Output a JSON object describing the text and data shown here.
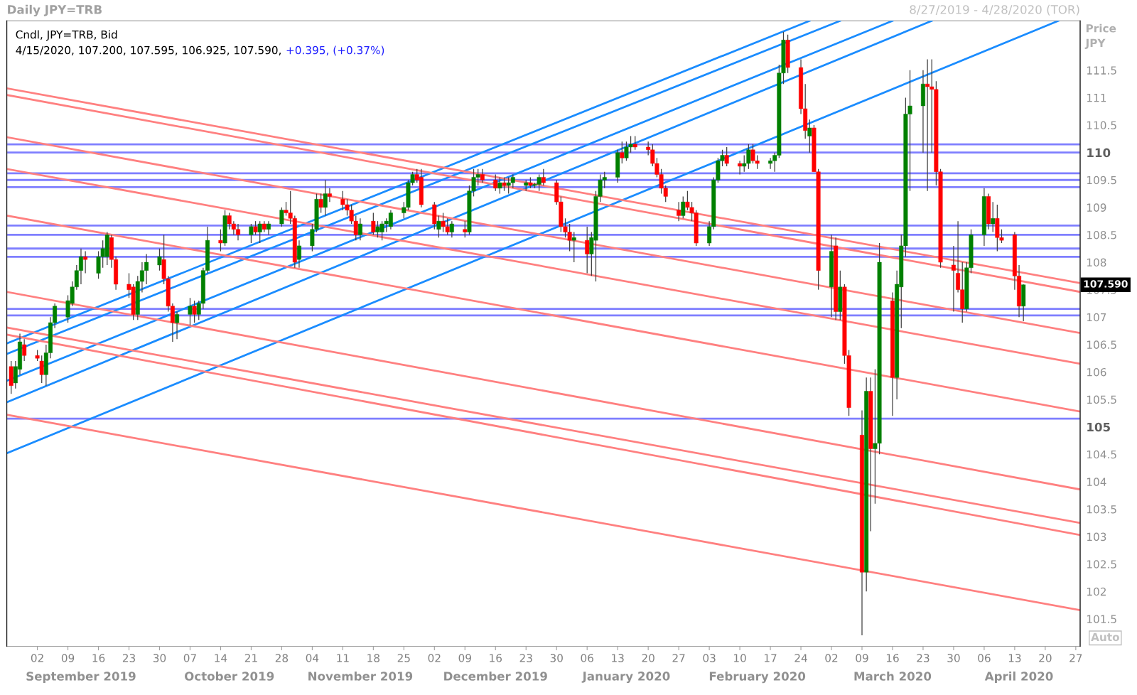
{
  "chart_data": {
    "type": "candlestick",
    "title": "Daily JPY=TRB",
    "subtitle": "8/27/2019 - 4/28/2020 (TOR)",
    "ylabel": "Price\nJPY",
    "annotations": [
      "Cndl, JPY=TRB, Bid",
      "4/15/2020, 107.200, 107.595, 106.925, 107.590,",
      "+0.395, (+0.37%)",
      "Auto",
      "107.590"
    ],
    "x": [
      "2019-08-27",
      "2019-08-28",
      "2019-08-29",
      "2019-08-30",
      "2019-09-02",
      "2019-09-03",
      "2019-09-04",
      "2019-09-05",
      "2019-09-06",
      "2019-09-09",
      "2019-09-10",
      "2019-09-11",
      "2019-09-12",
      "2019-09-13",
      "2019-09-16",
      "2019-09-17",
      "2019-09-18",
      "2019-09-19",
      "2019-09-20",
      "2019-09-23",
      "2019-09-24",
      "2019-09-25",
      "2019-09-26",
      "2019-09-27",
      "2019-09-30",
      "2019-10-01",
      "2019-10-02",
      "2019-10-03",
      "2019-10-04",
      "2019-10-07",
      "2019-10-08",
      "2019-10-09",
      "2019-10-10",
      "2019-10-11",
      "2019-10-14",
      "2019-10-15",
      "2019-10-16",
      "2019-10-17",
      "2019-10-18",
      "2019-10-21",
      "2019-10-22",
      "2019-10-23",
      "2019-10-24",
      "2019-10-25",
      "2019-10-28",
      "2019-10-29",
      "2019-10-30",
      "2019-10-31",
      "2019-11-01",
      "2019-11-04",
      "2019-11-05",
      "2019-11-06",
      "2019-11-07",
      "2019-11-08",
      "2019-11-11",
      "2019-11-12",
      "2019-11-13",
      "2019-11-14",
      "2019-11-15",
      "2019-11-18",
      "2019-11-19",
      "2019-11-20",
      "2019-11-21",
      "2019-11-22",
      "2019-11-25",
      "2019-11-26",
      "2019-11-27",
      "2019-11-28",
      "2019-11-29",
      "2019-12-02",
      "2019-12-03",
      "2019-12-04",
      "2019-12-05",
      "2019-12-06",
      "2019-12-09",
      "2019-12-10",
      "2019-12-11",
      "2019-12-12",
      "2019-12-13",
      "2019-12-16",
      "2019-12-17",
      "2019-12-18",
      "2019-12-19",
      "2019-12-20",
      "2019-12-23",
      "2019-12-24",
      "2019-12-25",
      "2019-12-26",
      "2019-12-27",
      "2019-12-30",
      "2019-12-31",
      "2020-01-01",
      "2020-01-02",
      "2020-01-03",
      "2020-01-06",
      "2020-01-07",
      "2020-01-08",
      "2020-01-09",
      "2020-01-10",
      "2020-01-13",
      "2020-01-14",
      "2020-01-15",
      "2020-01-16",
      "2020-01-17",
      "2020-01-20",
      "2020-01-21",
      "2020-01-22",
      "2020-01-23",
      "2020-01-24",
      "2020-01-27",
      "2020-01-28",
      "2020-01-29",
      "2020-01-30",
      "2020-01-31",
      "2020-02-03",
      "2020-02-04",
      "2020-02-05",
      "2020-02-06",
      "2020-02-07",
      "2020-02-10",
      "2020-02-11",
      "2020-02-12",
      "2020-02-13",
      "2020-02-14",
      "2020-02-17",
      "2020-02-18",
      "2020-02-19",
      "2020-02-20",
      "2020-02-21",
      "2020-02-24",
      "2020-02-25",
      "2020-02-26",
      "2020-02-27",
      "2020-02-28",
      "2020-03-02",
      "2020-03-03",
      "2020-03-04",
      "2020-03-05",
      "2020-03-06",
      "2020-03-09",
      "2020-03-10",
      "2020-03-11",
      "2020-03-12",
      "2020-03-13",
      "2020-03-16",
      "2020-03-17",
      "2020-03-18",
      "2020-03-19",
      "2020-03-20",
      "2020-03-23",
      "2020-03-24",
      "2020-03-25",
      "2020-03-26",
      "2020-03-27",
      "2020-03-30",
      "2020-03-31",
      "2020-04-01",
      "2020-04-02",
      "2020-04-03",
      "2020-04-06",
      "2020-04-07",
      "2020-04-08",
      "2020-04-09",
      "2020-04-10",
      "2020-04-13",
      "2020-04-14",
      "2020-04-15"
    ],
    "ohlc": [
      [
        106.1,
        106.2,
        105.6,
        105.75
      ],
      [
        105.8,
        106.2,
        105.7,
        106.1
      ],
      [
        106.05,
        106.7,
        105.95,
        106.55
      ],
      [
        106.5,
        106.6,
        106.2,
        106.3
      ],
      [
        106.3,
        106.4,
        106.2,
        106.25
      ],
      [
        106.2,
        106.3,
        105.8,
        105.95
      ],
      [
        105.95,
        106.5,
        105.75,
        106.35
      ],
      [
        106.35,
        107.0,
        106.25,
        106.9
      ],
      [
        106.9,
        107.25,
        106.8,
        107.2
      ],
      [
        107.0,
        107.4,
        106.9,
        107.3
      ],
      [
        107.25,
        107.65,
        107.2,
        107.55
      ],
      [
        107.55,
        107.95,
        107.5,
        107.85
      ],
      [
        107.85,
        108.25,
        107.6,
        108.1
      ],
      [
        108.1,
        108.2,
        107.8,
        108.05
      ],
      [
        107.8,
        108.2,
        107.7,
        108.1
      ],
      [
        108.1,
        108.4,
        107.9,
        108.25
      ],
      [
        108.1,
        108.55,
        107.95,
        108.5
      ],
      [
        108.45,
        108.5,
        107.9,
        108.05
      ],
      [
        108.05,
        108.1,
        107.5,
        107.6
      ],
      [
        107.6,
        107.8,
        107.35,
        107.5
      ],
      [
        107.55,
        107.6,
        106.95,
        107.05
      ],
      [
        107.05,
        107.75,
        106.95,
        107.65
      ],
      [
        107.65,
        108.0,
        107.45,
        107.85
      ],
      [
        107.85,
        108.15,
        107.6,
        108.0
      ],
      [
        107.95,
        108.25,
        107.85,
        108.1
      ],
      [
        108.05,
        108.5,
        107.6,
        107.7
      ],
      [
        107.7,
        107.75,
        107.1,
        107.2
      ],
      [
        107.2,
        107.25,
        106.55,
        106.9
      ],
      [
        106.9,
        107.1,
        106.6,
        107.05
      ],
      [
        107.05,
        107.35,
        106.85,
        107.2
      ],
      [
        107.2,
        107.3,
        106.9,
        107.05
      ],
      [
        107.05,
        107.3,
        106.95,
        107.25
      ],
      [
        107.25,
        107.9,
        107.15,
        107.85
      ],
      [
        107.85,
        108.65,
        107.8,
        108.4
      ],
      [
        108.4,
        108.6,
        108.2,
        108.35
      ],
      [
        108.35,
        108.95,
        108.3,
        108.85
      ],
      [
        108.85,
        108.9,
        108.6,
        108.7
      ],
      [
        108.7,
        108.75,
        108.5,
        108.6
      ],
      [
        108.6,
        108.7,
        108.4,
        108.5
      ],
      [
        108.5,
        108.7,
        108.35,
        108.65
      ],
      [
        108.65,
        108.75,
        108.5,
        108.55
      ],
      [
        108.55,
        108.75,
        108.35,
        108.7
      ],
      [
        108.7,
        108.75,
        108.55,
        108.6
      ],
      [
        108.6,
        108.75,
        108.5,
        108.7
      ],
      [
        108.7,
        109.0,
        108.65,
        108.95
      ],
      [
        108.95,
        109.1,
        108.85,
        108.9
      ],
      [
        108.9,
        109.3,
        108.7,
        108.8
      ],
      [
        108.8,
        108.85,
        107.9,
        108.0
      ],
      [
        108.05,
        108.4,
        107.9,
        108.3
      ],
      [
        108.3,
        108.7,
        108.2,
        108.6
      ],
      [
        108.6,
        109.25,
        108.55,
        109.15
      ],
      [
        109.15,
        109.25,
        108.9,
        109.0
      ],
      [
        109.0,
        109.5,
        108.85,
        109.25
      ],
      [
        109.25,
        109.35,
        109.1,
        109.2
      ],
      [
        109.15,
        109.3,
        108.95,
        109.05
      ],
      [
        109.05,
        109.15,
        108.85,
        108.95
      ],
      [
        108.95,
        109.05,
        108.7,
        108.75
      ],
      [
        108.75,
        108.85,
        108.4,
        108.5
      ],
      [
        108.5,
        108.8,
        108.4,
        108.7
      ],
      [
        108.75,
        108.9,
        108.5,
        108.55
      ],
      [
        108.55,
        108.75,
        108.45,
        108.65
      ],
      [
        108.55,
        108.75,
        108.4,
        108.7
      ],
      [
        108.7,
        108.8,
        108.55,
        108.75
      ],
      [
        108.65,
        108.95,
        108.6,
        108.9
      ],
      [
        108.9,
        109.1,
        108.8,
        109.0
      ],
      [
        109.0,
        109.5,
        108.95,
        109.45
      ],
      [
        109.45,
        109.65,
        109.4,
        109.6
      ],
      [
        109.6,
        109.7,
        109.45,
        109.5
      ],
      [
        109.55,
        109.7,
        109.0,
        109.05
      ],
      [
        109.05,
        109.1,
        108.6,
        108.7
      ],
      [
        108.6,
        108.85,
        108.45,
        108.75
      ],
      [
        108.75,
        108.9,
        108.55,
        108.65
      ],
      [
        108.65,
        108.8,
        108.5,
        108.55
      ],
      [
        108.55,
        108.75,
        108.45,
        108.7
      ],
      [
        108.6,
        108.75,
        108.45,
        108.55
      ],
      [
        108.55,
        109.4,
        108.5,
        109.3
      ],
      [
        109.3,
        109.7,
        109.2,
        109.55
      ],
      [
        109.55,
        109.7,
        109.4,
        109.6
      ],
      [
        109.6,
        109.7,
        109.45,
        109.5
      ],
      [
        109.5,
        109.6,
        109.3,
        109.35
      ],
      [
        109.35,
        109.55,
        109.25,
        109.45
      ],
      [
        109.45,
        109.55,
        109.3,
        109.4
      ],
      [
        109.4,
        109.55,
        109.25,
        109.45
      ],
      [
        109.45,
        109.6,
        109.35,
        109.55
      ],
      [
        109.4,
        109.5,
        109.3,
        109.45
      ],
      [
        109.45,
        109.55,
        109.35,
        109.4
      ],
      [
        109.4,
        109.45,
        109.35,
        109.42
      ],
      [
        109.42,
        109.6,
        109.3,
        109.55
      ],
      [
        109.55,
        109.7,
        109.4,
        109.45
      ],
      [
        109.45,
        109.5,
        109.05,
        109.1
      ],
      [
        109.1,
        109.2,
        108.55,
        108.65
      ],
      [
        108.65,
        108.8,
        108.45,
        108.55
      ],
      [
        108.55,
        108.7,
        108.2,
        108.4
      ],
      [
        108.4,
        108.55,
        108.0,
        108.45
      ],
      [
        108.4,
        108.65,
        107.8,
        108.15
      ],
      [
        108.15,
        108.55,
        107.75,
        108.45
      ],
      [
        108.4,
        109.3,
        107.65,
        109.2
      ],
      [
        109.2,
        109.6,
        109.1,
        109.5
      ],
      [
        109.5,
        109.65,
        109.35,
        109.55
      ],
      [
        109.55,
        110.05,
        109.45,
        110.0
      ],
      [
        110.0,
        110.2,
        109.8,
        109.9
      ],
      [
        109.9,
        110.2,
        109.85,
        110.1
      ],
      [
        110.1,
        110.3,
        110.0,
        110.15
      ],
      [
        110.15,
        110.3,
        110.05,
        110.1
      ],
      [
        110.1,
        110.2,
        109.95,
        110.05
      ],
      [
        110.05,
        110.15,
        109.75,
        109.8
      ],
      [
        109.8,
        109.9,
        109.55,
        109.6
      ],
      [
        109.6,
        109.7,
        109.25,
        109.35
      ],
      [
        109.35,
        109.4,
        109.1,
        109.2
      ],
      [
        108.95,
        109.1,
        108.75,
        108.85
      ],
      [
        108.85,
        109.2,
        108.8,
        109.1
      ],
      [
        109.1,
        109.3,
        108.95,
        109.0
      ],
      [
        109.0,
        109.1,
        108.75,
        108.9
      ],
      [
        108.9,
        108.95,
        108.3,
        108.35
      ],
      [
        108.35,
        108.75,
        108.3,
        108.65
      ],
      [
        108.65,
        109.55,
        108.6,
        109.5
      ],
      [
        109.5,
        109.9,
        109.45,
        109.85
      ],
      [
        109.85,
        110.05,
        109.75,
        109.95
      ],
      [
        109.95,
        110.1,
        109.75,
        109.8
      ],
      [
        109.8,
        109.85,
        109.6,
        109.75
      ],
      [
        109.75,
        109.95,
        109.65,
        109.8
      ],
      [
        109.8,
        110.15,
        109.7,
        110.05
      ],
      [
        110.05,
        110.15,
        109.8,
        109.85
      ],
      [
        109.85,
        109.95,
        109.7,
        109.8
      ],
      [
        109.8,
        109.9,
        109.7,
        109.85
      ],
      [
        109.85,
        110.0,
        109.65,
        109.95
      ],
      [
        109.95,
        111.6,
        109.9,
        111.45
      ],
      [
        111.45,
        112.2,
        111.25,
        112.05
      ],
      [
        112.05,
        112.15,
        111.45,
        111.55
      ],
      [
        111.55,
        111.7,
        110.7,
        110.8
      ],
      [
        110.8,
        111.25,
        110.25,
        110.4
      ],
      [
        110.3,
        110.6,
        110.0,
        110.45
      ],
      [
        110.45,
        110.5,
        109.65,
        109.65
      ],
      [
        109.65,
        109.7,
        107.5,
        107.85
      ],
      [
        107.55,
        108.5,
        107.0,
        108.2
      ],
      [
        108.3,
        108.45,
        106.95,
        107.1
      ],
      [
        107.1,
        107.85,
        106.95,
        107.55
      ],
      [
        107.55,
        107.6,
        106.15,
        106.3
      ],
      [
        106.3,
        106.4,
        105.2,
        105.35
      ],
      [
        104.85,
        105.3,
        101.2,
        102.35
      ],
      [
        102.35,
        105.9,
        102.0,
        105.65
      ],
      [
        105.65,
        105.9,
        103.1,
        104.6
      ],
      [
        104.6,
        106.05,
        103.6,
        104.7
      ],
      [
        104.7,
        108.35,
        104.5,
        108.0
      ],
      [
        107.3,
        107.45,
        105.2,
        105.9
      ],
      [
        105.9,
        107.85,
        105.5,
        107.6
      ],
      [
        107.55,
        108.5,
        106.8,
        108.3
      ],
      [
        108.3,
        111.0,
        108.1,
        110.7
      ],
      [
        110.7,
        111.5,
        109.3,
        110.85
      ],
      [
        110.85,
        111.5,
        110.0,
        111.25
      ],
      [
        111.25,
        111.7,
        109.3,
        111.2
      ],
      [
        111.2,
        111.7,
        110.0,
        111.15
      ],
      [
        111.15,
        111.3,
        109.4,
        109.65
      ],
      [
        109.65,
        109.7,
        107.9,
        108.0
      ],
      [
        107.95,
        108.3,
        107.1,
        107.85
      ],
      [
        107.8,
        108.75,
        107.45,
        107.5
      ],
      [
        107.5,
        108.0,
        106.9,
        107.15
      ],
      [
        107.15,
        108.0,
        107.1,
        107.9
      ],
      [
        107.9,
        108.6,
        107.8,
        108.5
      ],
      [
        108.5,
        109.35,
        108.3,
        109.2
      ],
      [
        109.2,
        109.25,
        108.6,
        108.7
      ],
      [
        108.7,
        109.1,
        108.55,
        108.8
      ],
      [
        108.8,
        109.05,
        108.2,
        108.45
      ],
      [
        108.45,
        108.6,
        108.35,
        108.4
      ],
      [
        108.5,
        108.55,
        107.5,
        107.75
      ],
      [
        107.75,
        107.95,
        107.0,
        107.2
      ],
      [
        107.2,
        107.595,
        106.925,
        107.59
      ]
    ],
    "series": [
      {
        "type": "line",
        "color": "#1a8cff",
        "x": [
          "2019-08-26",
          "2020-02-26"
        ],
        "values": [
          106.52,
          112.4
        ]
      },
      {
        "type": "line",
        "color": "#1a8cff",
        "x": [
          "2019-08-26",
          "2020-03-04"
        ],
        "values": [
          106.33,
          112.4
        ]
      },
      {
        "type": "line",
        "color": "#1a8cff",
        "x": [
          "2019-08-26",
          "2020-03-16"
        ],
        "values": [
          105.84,
          112.4
        ]
      },
      {
        "type": "line",
        "color": "#1a8cff",
        "x": [
          "2019-08-26",
          "2020-03-25"
        ],
        "values": [
          105.45,
          112.4
        ]
      },
      {
        "type": "line",
        "color": "#1a8cff",
        "x": [
          "2019-08-26",
          "2020-04-23"
        ],
        "values": [
          104.52,
          112.4
        ]
      },
      {
        "type": "line",
        "color": "#ff8080",
        "x": [
          "2019-08-26",
          "2020-04-28"
        ],
        "values": [
          111.17,
          107.62
        ]
      },
      {
        "type": "line",
        "color": "#ff8080",
        "x": [
          "2019-08-26",
          "2020-04-28"
        ],
        "values": [
          111.05,
          107.46
        ]
      },
      {
        "type": "line",
        "color": "#ff8080",
        "x": [
          "2019-08-26",
          "2020-04-28"
        ],
        "values": [
          110.28,
          106.71
        ]
      },
      {
        "type": "line",
        "color": "#ff8080",
        "x": [
          "2019-08-26",
          "2020-04-28"
        ],
        "values": [
          109.7,
          106.15
        ]
      },
      {
        "type": "line",
        "color": "#ff8080",
        "x": [
          "2019-08-26",
          "2020-04-28"
        ],
        "values": [
          108.85,
          105.28
        ]
      },
      {
        "type": "line",
        "color": "#ff8080",
        "x": [
          "2019-08-26",
          "2020-04-28"
        ],
        "values": [
          107.46,
          103.86
        ]
      },
      {
        "type": "line",
        "color": "#ff8080",
        "x": [
          "2019-08-26",
          "2020-04-28"
        ],
        "values": [
          106.81,
          103.25
        ]
      },
      {
        "type": "line",
        "color": "#ff8080",
        "x": [
          "2019-08-26",
          "2020-04-28"
        ],
        "values": [
          106.68,
          103.03
        ]
      },
      {
        "type": "line",
        "color": "#ff8080",
        "x": [
          "2019-08-26",
          "2020-04-28"
        ],
        "values": [
          105.22,
          101.66
        ]
      }
    ],
    "ref_lines": [
      {
        "axis": "y",
        "value": 110.15,
        "color": "#7f7fff"
      },
      {
        "axis": "y",
        "value": 110.0,
        "color": "#7f7fff"
      },
      {
        "axis": "y",
        "value": 109.62,
        "color": "#7f7fff"
      },
      {
        "axis": "y",
        "value": 109.5,
        "color": "#7f7fff"
      },
      {
        "axis": "y",
        "value": 109.37,
        "color": "#7f7fff"
      },
      {
        "axis": "y",
        "value": 108.67,
        "color": "#7f7fff"
      },
      {
        "axis": "y",
        "value": 108.5,
        "color": "#7f7fff"
      },
      {
        "axis": "y",
        "value": 108.25,
        "color": "#7f7fff"
      },
      {
        "axis": "y",
        "value": 108.1,
        "color": "#7f7fff"
      },
      {
        "axis": "y",
        "value": 107.15,
        "color": "#7f7fff"
      },
      {
        "axis": "y",
        "value": 107.03,
        "color": "#7f7fff"
      },
      {
        "axis": "y",
        "value": 105.15,
        "color": "#7f7fff"
      }
    ],
    "xlim": [
      "2019-08-26",
      "2020-04-28"
    ],
    "xticks": [
      {
        "value": "2019-09-02",
        "label": "02"
      },
      {
        "value": "2019-09-09",
        "label": "09"
      },
      {
        "value": "2019-09-16",
        "label": "16"
      },
      {
        "value": "2019-09-23",
        "label": "23"
      },
      {
        "value": "2019-09-30",
        "label": "30"
      },
      {
        "value": "2019-10-07",
        "label": "07"
      },
      {
        "value": "2019-10-14",
        "label": "14"
      },
      {
        "value": "2019-10-21",
        "label": "21"
      },
      {
        "value": "2019-10-28",
        "label": "28"
      },
      {
        "value": "2019-11-04",
        "label": "04"
      },
      {
        "value": "2019-11-11",
        "label": "11"
      },
      {
        "value": "2019-11-18",
        "label": "18"
      },
      {
        "value": "2019-11-25",
        "label": "25"
      },
      {
        "value": "2019-12-02",
        "label": "02"
      },
      {
        "value": "2019-12-09",
        "label": "09"
      },
      {
        "value": "2019-12-16",
        "label": "16"
      },
      {
        "value": "2019-12-23",
        "label": "23"
      },
      {
        "value": "2019-12-30",
        "label": "30"
      },
      {
        "value": "2020-01-06",
        "label": "06"
      },
      {
        "value": "2020-01-13",
        "label": "13"
      },
      {
        "value": "2020-01-20",
        "label": "20"
      },
      {
        "value": "2020-01-27",
        "label": "27"
      },
      {
        "value": "2020-02-03",
        "label": "03"
      },
      {
        "value": "2020-02-10",
        "label": "10"
      },
      {
        "value": "2020-02-17",
        "label": "17"
      },
      {
        "value": "2020-02-24",
        "label": "24"
      },
      {
        "value": "2020-03-02",
        "label": "02"
      },
      {
        "value": "2020-03-09",
        "label": "09"
      },
      {
        "value": "2020-03-16",
        "label": "16"
      },
      {
        "value": "2020-03-23",
        "label": "23"
      },
      {
        "value": "2020-03-30",
        "label": "30"
      },
      {
        "value": "2020-04-06",
        "label": "06"
      },
      {
        "value": "2020-04-13",
        "label": "13"
      },
      {
        "value": "2020-04-20",
        "label": "20"
      },
      {
        "value": "2020-04-27",
        "label": "27"
      }
    ],
    "x2lim": [
      "2019-08-26",
      "2020-04-28"
    ],
    "x2ticks": [
      {
        "value": "2019-09-12",
        "label": "September 2019"
      },
      {
        "value": "2019-10-16",
        "label": "October 2019"
      },
      {
        "value": "2019-11-15",
        "label": "November 2019"
      },
      {
        "value": "2019-12-16",
        "label": "December 2019"
      },
      {
        "value": "2020-01-15",
        "label": "January 2020"
      },
      {
        "value": "2020-02-14",
        "label": "February 2020"
      },
      {
        "value": "2020-03-16",
        "label": "March 2020"
      },
      {
        "value": "2020-04-14",
        "label": "April 2020"
      }
    ],
    "ylim": [
      101.0,
      112.4
    ],
    "yticks": [
      101.5,
      102,
      102.5,
      103,
      103.5,
      104,
      104.5,
      105,
      105.5,
      106,
      106.5,
      107,
      107.5,
      108,
      108.5,
      109,
      109.5,
      110,
      110.5,
      111,
      111.5
    ],
    "grid": false,
    "legend": false
  }
}
